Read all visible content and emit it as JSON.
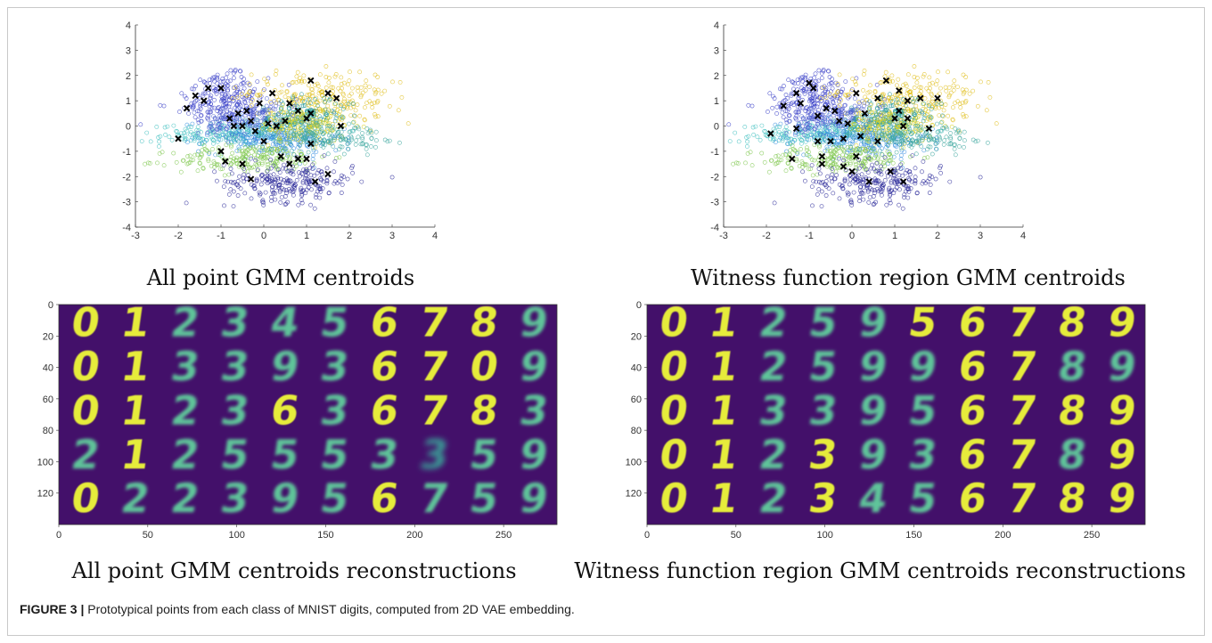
{
  "figure": {
    "label": "FIGURE 3 |",
    "caption": " Prototypical points from each class of MNIST digits, computed from 2D VAE embedding."
  },
  "panels": {
    "top_left_caption": "All point GMM centroids",
    "top_right_caption": "Witness function region GMM centroids",
    "bottom_left_caption": "All point GMM centroids reconstructions",
    "bottom_right_caption": "Witness function region GMM centroids reconstructions"
  },
  "chart_data": [
    {
      "type": "scatter",
      "xlim": [
        -3,
        4
      ],
      "ylim": [
        -4,
        4
      ],
      "xticks": [
        -3,
        -2,
        -1,
        0,
        1,
        2,
        3,
        4
      ],
      "yticks": [
        -4,
        -3,
        -2,
        -1,
        0,
        1,
        2,
        3,
        4
      ],
      "clusters": [
        {
          "color": "#3a3fc8",
          "cx": -0.9,
          "cy": 1.1,
          "sx": 0.55,
          "sy": 0.55,
          "rot": 0.6,
          "n": 220
        },
        {
          "color": "#e0c020",
          "cx": 1.3,
          "cy": 1.1,
          "sx": 0.8,
          "sy": 0.5,
          "rot": -0.2,
          "n": 230
        },
        {
          "color": "#3fc0c0",
          "cx": -0.6,
          "cy": -0.3,
          "sx": 0.9,
          "sy": 0.22,
          "rot": 0.05,
          "n": 220
        },
        {
          "color": "#3a8fe0",
          "cx": 0.2,
          "cy": -0.5,
          "sx": 0.8,
          "sy": 0.35,
          "rot": -0.1,
          "n": 230
        },
        {
          "color": "#80c850",
          "cx": -0.3,
          "cy": -1.3,
          "sx": 0.9,
          "sy": 0.28,
          "rot": 0.05,
          "n": 210
        },
        {
          "color": "#2c2a9a",
          "cx": 0.6,
          "cy": -2.2,
          "sx": 0.75,
          "sy": 0.4,
          "rot": 0.0,
          "n": 240
        },
        {
          "color": "#2a9a9a",
          "cx": 0.8,
          "cy": 0.4,
          "sx": 0.55,
          "sy": 0.3,
          "rot": 0.3,
          "n": 180
        },
        {
          "color": "#d8d020",
          "cx": 0.9,
          "cy": 0.0,
          "sx": 0.5,
          "sy": 0.35,
          "rot": 0.0,
          "n": 150
        },
        {
          "color": "#40a8a0",
          "cx": 1.4,
          "cy": -0.4,
          "sx": 0.7,
          "sy": 0.3,
          "rot": 0.0,
          "n": 170
        },
        {
          "color": "#5060d0",
          "cx": -0.5,
          "cy": 0.3,
          "sx": 0.5,
          "sy": 0.3,
          "rot": 0.3,
          "n": 140
        }
      ],
      "centroids": [
        [
          -1.6,
          1.2
        ],
        [
          -1.3,
          1.5
        ],
        [
          -1.0,
          1.5
        ],
        [
          -1.8,
          0.7
        ],
        [
          -1.4,
          1.0
        ],
        [
          -0.8,
          0.3
        ],
        [
          -0.6,
          0.5
        ],
        [
          -0.5,
          0.0
        ],
        [
          -0.7,
          0.0
        ],
        [
          -0.3,
          0.2
        ],
        [
          -0.2,
          -0.2
        ],
        [
          0.0,
          -0.6
        ],
        [
          0.1,
          0.1
        ],
        [
          -0.1,
          0.9
        ],
        [
          0.2,
          1.3
        ],
        [
          0.6,
          0.9
        ],
        [
          0.8,
          0.6
        ],
        [
          1.0,
          0.3
        ],
        [
          1.1,
          0.5
        ],
        [
          1.1,
          1.8
        ],
        [
          1.5,
          1.3
        ],
        [
          1.7,
          1.1
        ],
        [
          1.8,
          0.0
        ],
        [
          1.1,
          -0.7
        ],
        [
          0.8,
          -1.3
        ],
        [
          1.0,
          -1.3
        ],
        [
          0.4,
          -1.2
        ],
        [
          -0.5,
          -1.5
        ],
        [
          -0.9,
          -1.4
        ],
        [
          -1.0,
          -1.0
        ],
        [
          -2.0,
          -0.5
        ],
        [
          -0.3,
          -2.1
        ],
        [
          0.6,
          -1.5
        ],
        [
          1.2,
          -2.2
        ],
        [
          1.5,
          -1.9
        ],
        [
          -0.4,
          0.6
        ],
        [
          0.3,
          0.0
        ],
        [
          0.5,
          0.2
        ]
      ]
    },
    {
      "type": "scatter",
      "xlim": [
        -3,
        4
      ],
      "ylim": [
        -4,
        4
      ],
      "xticks": [
        -3,
        -2,
        -1,
        0,
        1,
        2,
        3,
        4
      ],
      "yticks": [
        -4,
        -3,
        -2,
        -1,
        0,
        1,
        2,
        3,
        4
      ],
      "clusters": [
        {
          "color": "#3a3fc8",
          "cx": -0.9,
          "cy": 1.1,
          "sx": 0.55,
          "sy": 0.55,
          "rot": 0.6,
          "n": 220
        },
        {
          "color": "#e0c020",
          "cx": 1.3,
          "cy": 1.1,
          "sx": 0.8,
          "sy": 0.5,
          "rot": -0.2,
          "n": 230
        },
        {
          "color": "#3fc0c0",
          "cx": -0.6,
          "cy": -0.3,
          "sx": 0.9,
          "sy": 0.22,
          "rot": 0.05,
          "n": 220
        },
        {
          "color": "#3a8fe0",
          "cx": 0.2,
          "cy": -0.5,
          "sx": 0.8,
          "sy": 0.35,
          "rot": -0.1,
          "n": 230
        },
        {
          "color": "#80c850",
          "cx": -0.3,
          "cy": -1.3,
          "sx": 0.9,
          "sy": 0.28,
          "rot": 0.05,
          "n": 210
        },
        {
          "color": "#2c2a9a",
          "cx": 0.6,
          "cy": -2.2,
          "sx": 0.75,
          "sy": 0.4,
          "rot": 0.0,
          "n": 240
        },
        {
          "color": "#2a9a9a",
          "cx": 0.8,
          "cy": 0.4,
          "sx": 0.55,
          "sy": 0.3,
          "rot": 0.3,
          "n": 180
        },
        {
          "color": "#d8d020",
          "cx": 0.9,
          "cy": 0.0,
          "sx": 0.5,
          "sy": 0.35,
          "rot": 0.0,
          "n": 150
        },
        {
          "color": "#40a8a0",
          "cx": 1.4,
          "cy": -0.4,
          "sx": 0.7,
          "sy": 0.3,
          "rot": 0.0,
          "n": 170
        },
        {
          "color": "#5060d0",
          "cx": -0.5,
          "cy": 0.3,
          "sx": 0.5,
          "sy": 0.3,
          "rot": 0.3,
          "n": 140
        }
      ],
      "centroids": [
        [
          -1.0,
          1.7
        ],
        [
          -1.3,
          1.3
        ],
        [
          -0.9,
          1.5
        ],
        [
          -1.6,
          0.8
        ],
        [
          -1.2,
          0.9
        ],
        [
          -0.8,
          0.4
        ],
        [
          -0.6,
          0.7
        ],
        [
          -0.4,
          0.6
        ],
        [
          -0.3,
          0.2
        ],
        [
          -0.1,
          0.1
        ],
        [
          0.1,
          1.3
        ],
        [
          0.6,
          1.1
        ],
        [
          0.8,
          1.8
        ],
        [
          1.1,
          1.4
        ],
        [
          1.3,
          1.0
        ],
        [
          1.6,
          1.1
        ],
        [
          2.0,
          1.1
        ],
        [
          1.1,
          0.6
        ],
        [
          1.3,
          0.3
        ],
        [
          1.0,
          0.3
        ],
        [
          1.2,
          0.0
        ],
        [
          1.8,
          -0.1
        ],
        [
          0.2,
          -0.4
        ],
        [
          0.6,
          -0.6
        ],
        [
          -0.5,
          -0.6
        ],
        [
          -0.8,
          -0.6
        ],
        [
          -1.3,
          -0.1
        ],
        [
          -1.9,
          -0.3
        ],
        [
          -0.7,
          -1.2
        ],
        [
          -0.7,
          -1.5
        ],
        [
          -1.4,
          -1.3
        ],
        [
          -0.2,
          -1.6
        ],
        [
          0.0,
          -1.8
        ],
        [
          0.4,
          -2.2
        ],
        [
          0.9,
          -1.8
        ],
        [
          1.2,
          -2.2
        ],
        [
          0.1,
          -1.2
        ],
        [
          0.3,
          0.5
        ],
        [
          -0.2,
          -0.5
        ]
      ]
    },
    {
      "type": "heatmap",
      "xticks": [
        0,
        50,
        100,
        150,
        200,
        250
      ],
      "yticks": [
        0,
        20,
        40,
        60,
        80,
        100,
        120
      ],
      "xlim": [
        0,
        280
      ],
      "ylim": [
        0,
        140
      ],
      "bg_color": "#43106a",
      "rows": [
        [
          "0",
          "1",
          "2",
          "3",
          "4",
          "5",
          "6",
          "7",
          "8",
          "9"
        ],
        [
          "0",
          "1",
          "3",
          "3",
          "9",
          "3",
          "6",
          "7",
          "0",
          "9"
        ],
        [
          "0",
          "1",
          "2",
          "3",
          "6",
          "3",
          "6",
          "7",
          "8",
          "3"
        ],
        [
          "2",
          "1",
          "2",
          "5",
          "5",
          "5",
          "3",
          "3",
          "5",
          "9"
        ],
        [
          "0",
          "2",
          "2",
          "3",
          "9",
          "5",
          "6",
          "7",
          "5",
          "9"
        ]
      ],
      "blur": [
        [
          0,
          0,
          1,
          1,
          1,
          1,
          0,
          0,
          0,
          1
        ],
        [
          0,
          0,
          1,
          1,
          1,
          1,
          0,
          0,
          0,
          1
        ],
        [
          0,
          0,
          1,
          1,
          0,
          1,
          0,
          0,
          0,
          1
        ],
        [
          1,
          0,
          1,
          1,
          1,
          1,
          1,
          2,
          1,
          1
        ],
        [
          0,
          1,
          1,
          1,
          1,
          1,
          0,
          1,
          1,
          1
        ]
      ]
    },
    {
      "type": "heatmap",
      "xticks": [
        0,
        50,
        100,
        150,
        200,
        250
      ],
      "yticks": [
        0,
        20,
        40,
        60,
        80,
        100,
        120
      ],
      "xlim": [
        0,
        280
      ],
      "ylim": [
        0,
        140
      ],
      "bg_color": "#43106a",
      "rows": [
        [
          "0",
          "1",
          "2",
          "5",
          "9",
          "5",
          "6",
          "7",
          "8",
          "9"
        ],
        [
          "0",
          "1",
          "2",
          "5",
          "9",
          "9",
          "6",
          "7",
          "8",
          "9"
        ],
        [
          "0",
          "1",
          "3",
          "3",
          "9",
          "5",
          "6",
          "7",
          "8",
          "9"
        ],
        [
          "0",
          "1",
          "2",
          "3",
          "9",
          "3",
          "6",
          "7",
          "8",
          "9"
        ],
        [
          "0",
          "1",
          "2",
          "3",
          "4",
          "5",
          "6",
          "7",
          "8",
          "9"
        ]
      ],
      "blur": [
        [
          0,
          0,
          1,
          1,
          1,
          0,
          0,
          0,
          0,
          0
        ],
        [
          0,
          0,
          1,
          1,
          1,
          1,
          0,
          0,
          1,
          1
        ],
        [
          0,
          0,
          1,
          1,
          1,
          1,
          0,
          0,
          0,
          0
        ],
        [
          0,
          0,
          1,
          0,
          1,
          1,
          0,
          0,
          1,
          0
        ],
        [
          0,
          0,
          1,
          0,
          1,
          1,
          0,
          0,
          0,
          0
        ]
      ]
    }
  ]
}
